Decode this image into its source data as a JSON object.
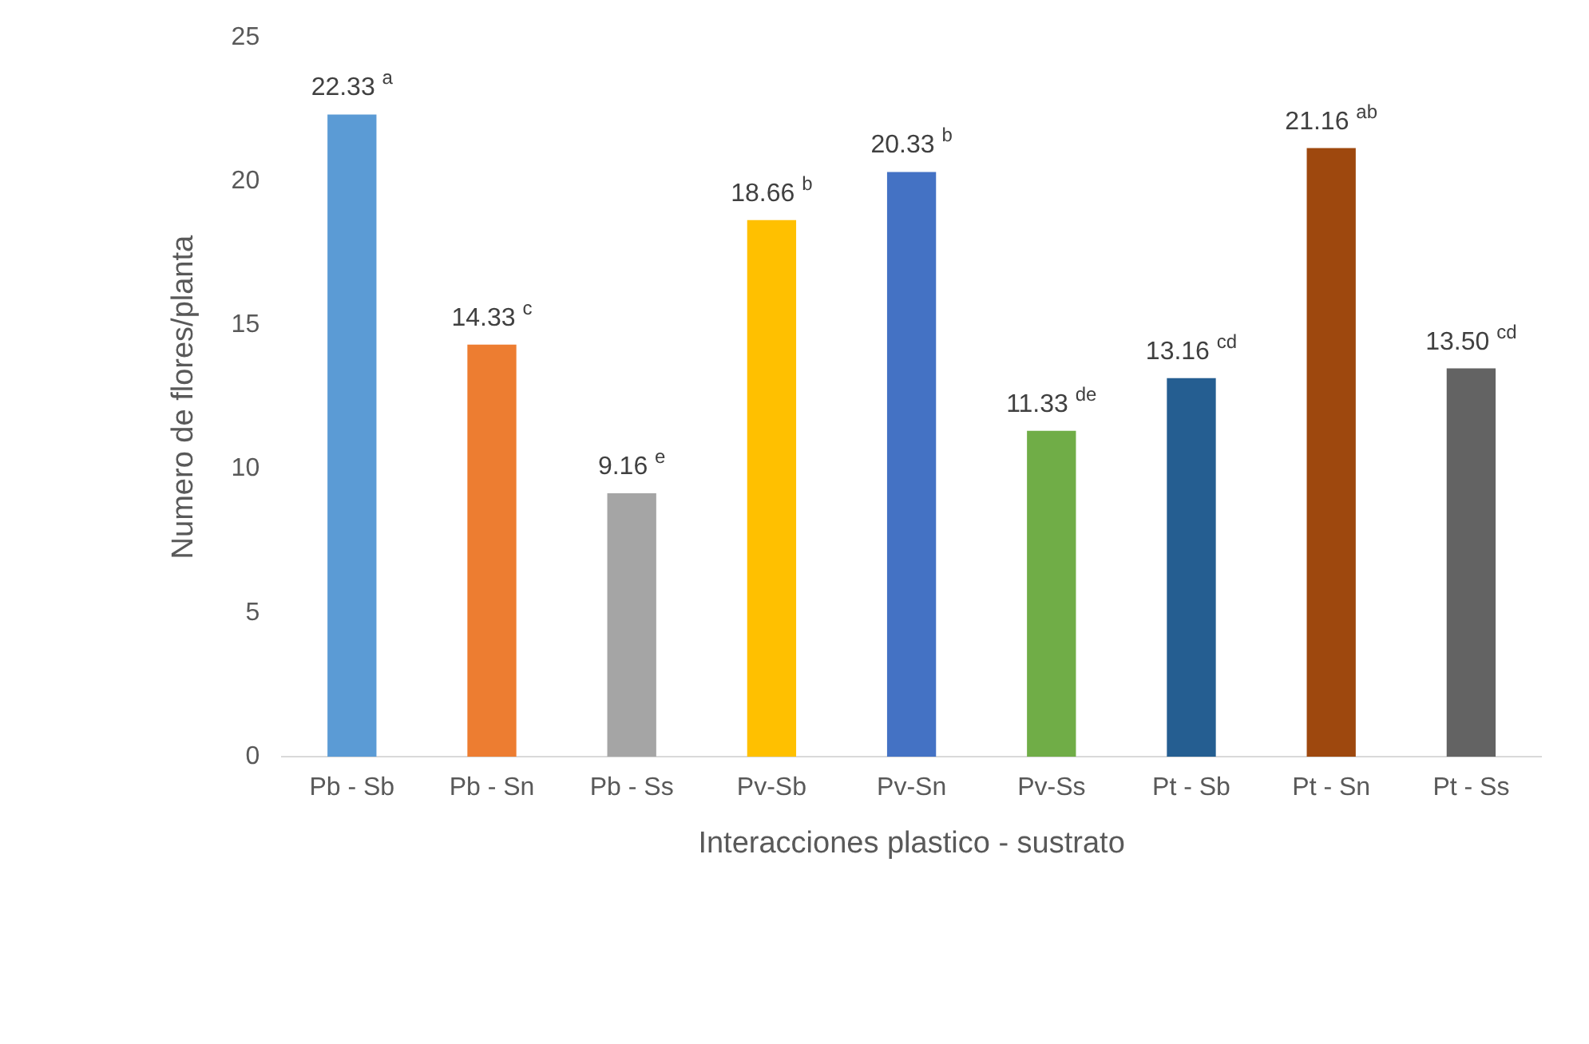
{
  "chart_data": {
    "type": "bar",
    "xlabel": "Interacciones plastico - sustrato",
    "ylabel": "Numero de flores/planta",
    "categories": [
      "Pb - Sb",
      "Pb - Sn",
      "Pb - Ss",
      "Pv-Sb",
      "Pv-Sn",
      "Pv-Ss",
      "Pt - Sb",
      "Pt - Sn",
      "Pt - Ss"
    ],
    "values": [
      22.33,
      14.33,
      9.16,
      18.66,
      20.33,
      11.33,
      13.16,
      21.16,
      13.5
    ],
    "colors": [
      "#5b9bd5",
      "#ed7d31",
      "#a5a5a5",
      "#ffc000",
      "#4472c4",
      "#70ad47",
      "#255e91",
      "#9e480e",
      "#636363"
    ],
    "value_labels": [
      "22.33 $^{a}$",
      "14.33 $^{c}$",
      "9.16 $^{e}$",
      "18.66 $^{b}$",
      "20.33 $^{b}$",
      "11.33 $^{de}$",
      "13.16 $^{cd}$",
      "21.16 $^{ab}$",
      "13.50 $^{cd}$"
    ],
    "ylim": [
      0,
      25
    ],
    "yticks": [
      0,
      5,
      10,
      15,
      20,
      25
    ],
    "grid": false,
    "legend": false
  }
}
